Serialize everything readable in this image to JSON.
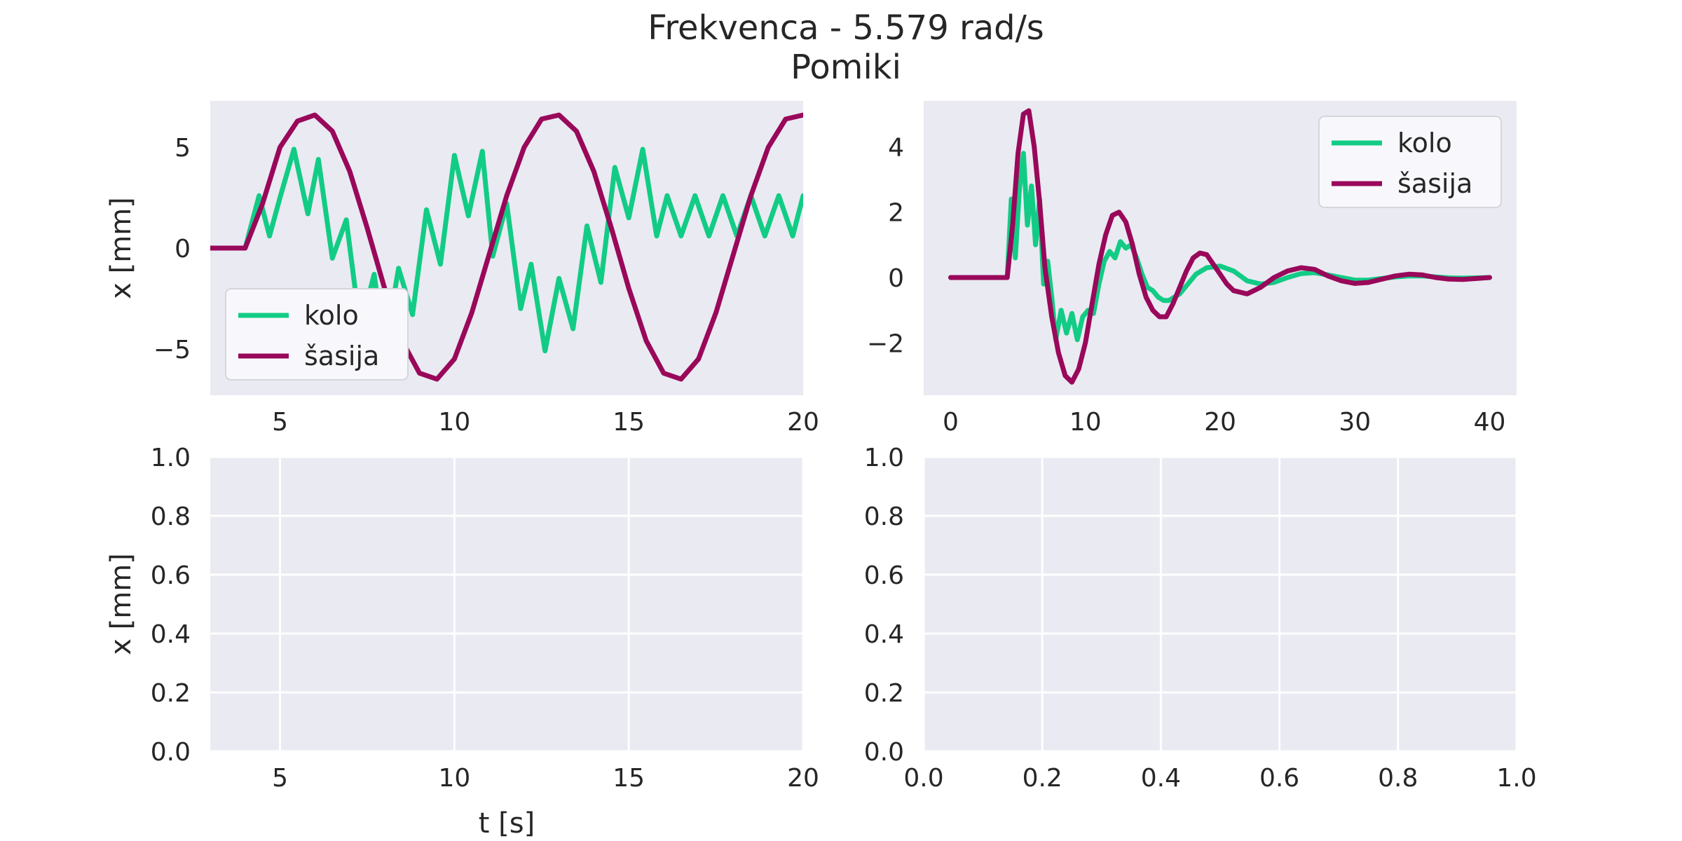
{
  "figure": {
    "title_line1": "Frekvenca - 5.579 rad/s",
    "title_line2": "Pomiki"
  },
  "colors": {
    "kolo": "#12cc85",
    "sasija": "#99085a",
    "axes_bg": "#eaeaf2"
  },
  "chart_data": [
    {
      "id": "top-left",
      "type": "line",
      "xlim": [
        3,
        20
      ],
      "ylim": [
        -7.3,
        7.3
      ],
      "xticks": [
        5,
        10,
        15,
        20
      ],
      "yticks": [
        5,
        0,
        -5
      ],
      "ytick_labels": [
        "5",
        "0",
        "−5"
      ],
      "xlabel": "",
      "ylabel": "x [mm]",
      "grid": false,
      "legend": {
        "position": "lower-left",
        "entries": [
          "kolo",
          "šasija"
        ]
      },
      "series": [
        {
          "name": "kolo",
          "x": [
            3,
            4,
            4.4,
            4.7,
            5.0,
            5.4,
            5.8,
            6.1,
            6.5,
            6.9,
            7.3,
            7.7,
            8.0,
            8.4,
            8.8,
            9.2,
            9.6,
            10.0,
            10.4,
            10.8,
            11.1,
            11.5,
            11.9,
            12.2,
            12.6,
            13.0,
            13.4,
            13.8,
            14.2,
            14.6,
            15.0,
            15.4,
            15.8,
            16.1,
            16.5,
            16.9,
            17.3,
            17.7,
            18.1,
            18.5,
            18.9,
            19.3,
            19.7,
            20.0
          ],
          "y": [
            0,
            0,
            2.6,
            0.6,
            2.5,
            4.9,
            1.7,
            4.4,
            -0.5,
            1.4,
            -4.0,
            -1.3,
            -5.1,
            -1.0,
            -3.3,
            1.9,
            -0.8,
            4.6,
            1.6,
            4.8,
            -0.4,
            2.2,
            -3.0,
            -0.8,
            -5.1,
            -1.5,
            -4.0,
            1.1,
            -1.7,
            4.0,
            1.5,
            4.9,
            0.6,
            2.6,
            0.6,
            2.6,
            0.6,
            2.6,
            0.6,
            2.6,
            0.6,
            2.6,
            0.6,
            2.6
          ]
        },
        {
          "name": "šasija",
          "x": [
            3,
            4,
            4.5,
            5,
            5.5,
            6,
            6.5,
            7,
            7.5,
            8,
            8.5,
            9,
            9.5,
            10,
            10.5,
            11,
            11.5,
            12,
            12.5,
            13,
            13.5,
            14,
            14.5,
            15,
            15.5,
            16,
            16.5,
            17,
            17.5,
            18,
            18.5,
            19,
            19.5,
            20
          ],
          "y": [
            0,
            0,
            2.2,
            5.0,
            6.3,
            6.6,
            5.8,
            3.8,
            1.0,
            -2.0,
            -4.6,
            -6.2,
            -6.5,
            -5.5,
            -3.2,
            -0.3,
            2.6,
            5.0,
            6.4,
            6.6,
            5.8,
            3.8,
            1.0,
            -2.0,
            -4.6,
            -6.2,
            -6.5,
            -5.5,
            -3.2,
            -0.3,
            2.6,
            5.0,
            6.4,
            6.6
          ]
        }
      ]
    },
    {
      "id": "top-right",
      "type": "line",
      "xlim": [
        -2,
        42
      ],
      "ylim": [
        -3.6,
        5.4
      ],
      "xticks": [
        0,
        10,
        20,
        30,
        40
      ],
      "yticks": [
        4,
        2,
        0,
        -2
      ],
      "ytick_labels": [
        "4",
        "2",
        "0",
        "−2"
      ],
      "xlabel": "",
      "ylabel": "",
      "grid": false,
      "legend": {
        "position": "upper-right",
        "entries": [
          "kolo",
          "šasija"
        ]
      },
      "series": [
        {
          "name": "kolo",
          "x": [
            0,
            4.2,
            4.5,
            4.8,
            5.1,
            5.4,
            5.7,
            6.0,
            6.3,
            6.6,
            6.9,
            7.2,
            7.5,
            7.8,
            8.2,
            8.6,
            9.0,
            9.4,
            9.8,
            10.2,
            10.6,
            11.0,
            11.4,
            11.8,
            12.2,
            12.6,
            13.0,
            13.4,
            13.8,
            14.2,
            14.6,
            15.0,
            15.4,
            15.8,
            16.2,
            16.6,
            17.0,
            17.6,
            18.2,
            19,
            20,
            21,
            22,
            23,
            24,
            25,
            26,
            27,
            28,
            29,
            30,
            31,
            32,
            33,
            34,
            35,
            36,
            37,
            38,
            39,
            40
          ],
          "y": [
            0,
            0,
            2.4,
            0.6,
            2.7,
            3.8,
            1.6,
            2.8,
            1.0,
            2.4,
            -0.2,
            0.5,
            -0.6,
            -1.9,
            -1.0,
            -1.7,
            -1.1,
            -1.9,
            -1.2,
            -1.0,
            -1.1,
            -0.2,
            0.5,
            0.8,
            0.6,
            1.1,
            0.9,
            1.0,
            0.6,
            0.1,
            -0.3,
            -0.4,
            -0.6,
            -0.7,
            -0.7,
            -0.6,
            -0.5,
            -0.2,
            0.1,
            0.3,
            0.35,
            0.2,
            -0.1,
            -0.2,
            -0.15,
            0.0,
            0.12,
            0.15,
            0.08,
            0.0,
            -0.08,
            -0.08,
            -0.03,
            0.02,
            0.05,
            0.05,
            0.02,
            -0.01,
            -0.02,
            -0.01,
            0.0
          ]
        },
        {
          "name": "šasija",
          "x": [
            0,
            4.2,
            4.6,
            5.0,
            5.4,
            5.8,
            6.2,
            6.6,
            7.0,
            7.5,
            8.0,
            8.5,
            9.0,
            9.5,
            10.0,
            10.5,
            11.0,
            11.5,
            12.0,
            12.5,
            13.0,
            13.5,
            14.0,
            14.5,
            15.0,
            15.5,
            16.0,
            16.5,
            17.0,
            17.5,
            18.0,
            18.5,
            19.0,
            19.5,
            20.0,
            20.5,
            21.0,
            22,
            23,
            24,
            25,
            26,
            27,
            28,
            29,
            30,
            31,
            32,
            33,
            34,
            35,
            36,
            37,
            38,
            39,
            40
          ],
          "y": [
            0,
            0,
            1.6,
            3.8,
            5.0,
            5.1,
            4.0,
            2.3,
            0.3,
            -1.2,
            -2.3,
            -3.0,
            -3.2,
            -2.8,
            -2.0,
            -0.8,
            0.4,
            1.3,
            1.9,
            2.0,
            1.7,
            1.0,
            0.1,
            -0.6,
            -1.0,
            -1.2,
            -1.2,
            -0.8,
            -0.3,
            0.2,
            0.6,
            0.75,
            0.7,
            0.4,
            0.1,
            -0.2,
            -0.4,
            -0.5,
            -0.3,
            0.0,
            0.2,
            0.3,
            0.25,
            0.05,
            -0.1,
            -0.18,
            -0.15,
            -0.05,
            0.05,
            0.1,
            0.08,
            0.0,
            -0.05,
            -0.06,
            -0.03,
            0.0
          ]
        }
      ]
    },
    {
      "id": "bottom-left",
      "type": "line",
      "xlim": [
        3,
        20
      ],
      "ylim": [
        0,
        1
      ],
      "xticks": [
        5,
        10,
        15,
        20
      ],
      "yticks": [
        0.0,
        0.2,
        0.4,
        0.6,
        0.8,
        1.0
      ],
      "ytick_labels": [
        "0.0",
        "0.2",
        "0.4",
        "0.6",
        "0.8",
        "1.0"
      ],
      "xlabel": "t [s]",
      "ylabel": "x [mm]",
      "grid": true,
      "series": []
    },
    {
      "id": "bottom-right",
      "type": "line",
      "xlim": [
        0,
        1
      ],
      "ylim": [
        0,
        1
      ],
      "xticks": [
        0.0,
        0.2,
        0.4,
        0.6,
        0.8,
        1.0
      ],
      "xtick_labels": [
        "0.0",
        "0.2",
        "0.4",
        "0.6",
        "0.8",
        "1.0"
      ],
      "yticks": [
        0.0,
        0.2,
        0.4,
        0.6,
        0.8,
        1.0
      ],
      "ytick_labels": [
        "0.0",
        "0.2",
        "0.4",
        "0.6",
        "0.8",
        "1.0"
      ],
      "xlabel": "",
      "ylabel": "",
      "grid": true,
      "series": []
    }
  ]
}
